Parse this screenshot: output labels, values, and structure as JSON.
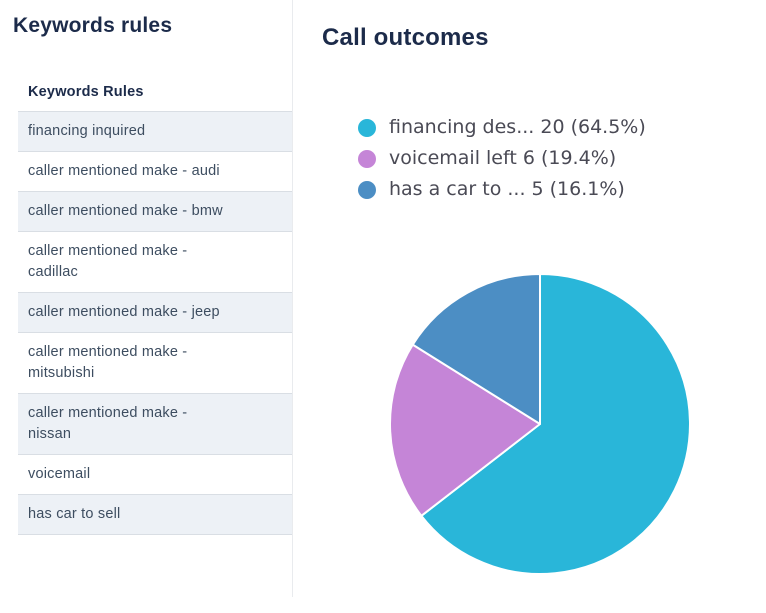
{
  "left_panel": {
    "title": "Keywords rules",
    "table": {
      "header": "Keywords Rules",
      "rows": [
        "financing inquired",
        "caller mentioned make - audi",
        "caller mentioned make - bmw",
        "caller mentioned make - cadillac",
        "caller mentioned make - jeep",
        "caller mentioned make - mitsubishi",
        "caller mentioned make - nissan",
        "voicemail",
        "has car to sell"
      ]
    }
  },
  "chart_panel": {
    "title": "Call outcomes"
  },
  "chart_data": {
    "type": "pie",
    "title": "Call outcomes",
    "total": 31,
    "start_angle_deg": 0,
    "direction": "clockwise",
    "legend_position": "top",
    "slices": [
      {
        "label": "financing des...",
        "value": 20,
        "pct": 64.5,
        "legend_text": "financing des... 20 (64.5%)",
        "color": "#29b6d9"
      },
      {
        "label": "voicemail left",
        "value": 6,
        "pct": 19.4,
        "legend_text": "voicemail left 6 (19.4%)",
        "color": "#c585d7"
      },
      {
        "label": "has a car to ...",
        "value": 5,
        "pct": 16.1,
        "legend_text": "has a car to ... 5 (16.1%)",
        "color": "#4c8ec4"
      }
    ]
  }
}
